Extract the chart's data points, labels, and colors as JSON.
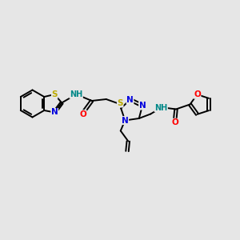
{
  "bg_color": "#e6e6e6",
  "bond_color": "#000000",
  "bond_width": 1.4,
  "atom_colors": {
    "N": "#0000dd",
    "O": "#ff0000",
    "S": "#bbaa00",
    "H": "#008888",
    "C": "#000000"
  },
  "font_size_atom": 7.5,
  "font_size_nh": 7.0,
  "scale": 1.0
}
